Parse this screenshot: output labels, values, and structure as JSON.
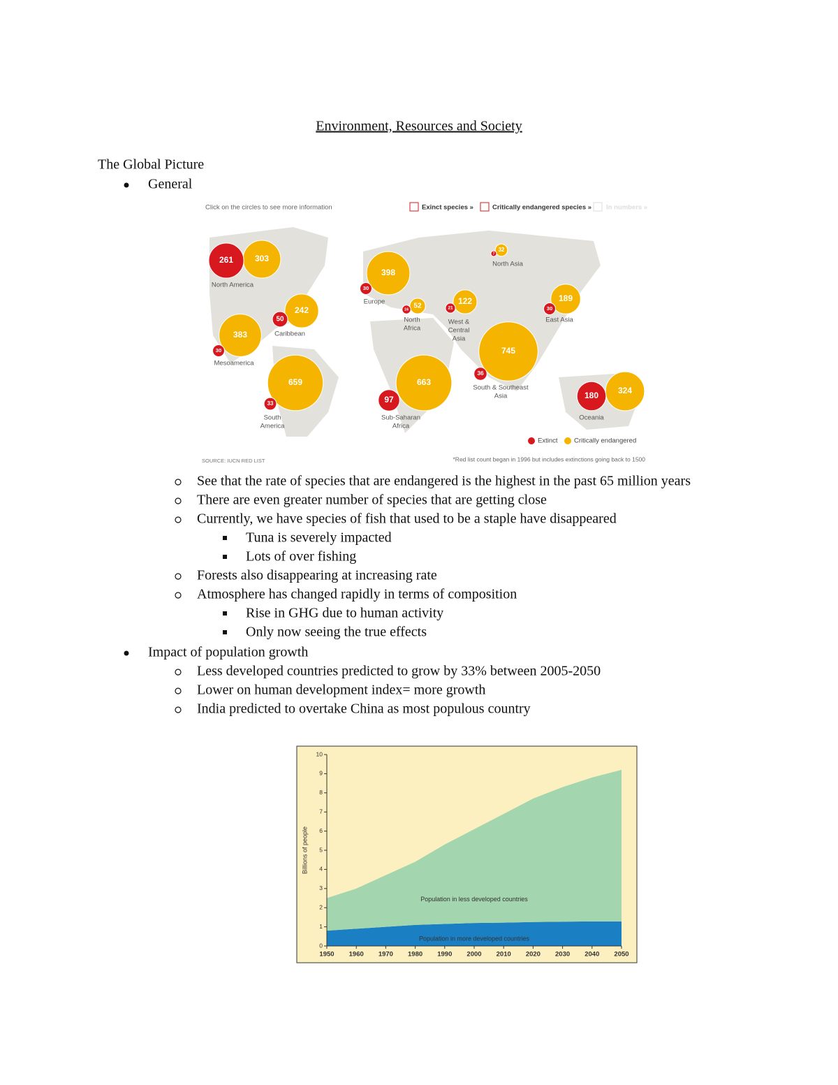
{
  "header": {
    "title": "Environment, Resources and Society"
  },
  "section": {
    "heading": "The Global Picture",
    "bullets": [
      {
        "text": "General",
        "items": [
          {
            "text": "See that the rate of species that are endangered is the highest in the past 65 million years"
          },
          {
            "text": "There are even greater number of species that are getting close"
          },
          {
            "text": "Currently, we have species of fish that used to be a staple have disappeared",
            "items": [
              "Tuna is severely impacted",
              "Lots of over fishing"
            ]
          },
          {
            "text": "Forests also disappearing at increasing rate"
          },
          {
            "text": "Atmosphere has changed rapidly in terms of composition",
            "items": [
              "Rise in GHG due to human activity",
              "Only now seeing the true effects"
            ]
          }
        ]
      },
      {
        "text": "Impact of population growth",
        "items": [
          {
            "text": "Less developed countries predicted to grow by 33% between 2005-2050"
          },
          {
            "text": "Lower on human development index= more growth"
          },
          {
            "text": "India predicted to overtake China as most populous country"
          }
        ]
      }
    ]
  },
  "map": {
    "instruction": "Click on the circles to see more information",
    "toggles": [
      "Exinct species »",
      "Critically endangered species »",
      "In numbers »"
    ],
    "colors": {
      "extinct": "#d7191f",
      "critically_endangered": "#f5b400"
    },
    "regions": [
      {
        "label": [
          "North America"
        ],
        "extinct": 261,
        "critically_endangered": 303
      },
      {
        "label": [
          "Caribbean"
        ],
        "extinct": 50,
        "critically_endangered": 242
      },
      {
        "label": [
          "Mesoamerica"
        ],
        "extinct": 30,
        "critically_endangered": 383
      },
      {
        "label": [
          "South",
          "America"
        ],
        "extinct": 33,
        "critically_endangered": 659
      },
      {
        "label": [
          "Europe"
        ],
        "extinct": 30,
        "critically_endangered": 398
      },
      {
        "label": [
          "North",
          "Africa"
        ],
        "extinct": 16,
        "critically_endangered": 52
      },
      {
        "label": [
          "West &",
          "Central",
          "Asia"
        ],
        "extinct": 21,
        "critically_endangered": 122
      },
      {
        "label": [
          "North Asia"
        ],
        "extinct": 7,
        "critically_endangered": 32
      },
      {
        "label": [
          "East Asia"
        ],
        "extinct": 30,
        "critically_endangered": 189
      },
      {
        "label": [
          "South & Southeast",
          "Asia"
        ],
        "extinct": 36,
        "critically_endangered": 745
      },
      {
        "label": [
          "Sub-Saharan",
          "Africa"
        ],
        "extinct": 97,
        "critically_endangered": 663
      },
      {
        "label": [
          "Oceania"
        ],
        "extinct": 180,
        "critically_endangered": 324
      }
    ],
    "legend": [
      "Extinct",
      "Critically endangered"
    ],
    "source": "SOURCE: IUCN RED LIST",
    "footnote": "*Red list count began in 1996 but includes extinctions going back to 1500"
  },
  "chart_data": {
    "type": "stacked-area",
    "y_label": "Billions of people",
    "x": [
      1950,
      1960,
      1970,
      1980,
      1990,
      2000,
      2010,
      2020,
      2030,
      2040,
      2050
    ],
    "xlim": [
      1950,
      2050
    ],
    "xticks": [
      1950,
      1960,
      1970,
      1980,
      1990,
      2000,
      2010,
      2020,
      2030,
      2040,
      2050
    ],
    "ylim": [
      0,
      10
    ],
    "yticks": [
      0,
      1,
      2,
      3,
      4,
      5,
      6,
      7,
      8,
      9,
      10
    ],
    "background": "#fdf0c0",
    "series": [
      {
        "name": "Population in more developed countries",
        "color": "#1b7fc4",
        "values": [
          0.8,
          0.9,
          1.0,
          1.1,
          1.15,
          1.2,
          1.22,
          1.25,
          1.27,
          1.28,
          1.28
        ]
      },
      {
        "name": "Population in less developed countries",
        "color": "#a3d5ae",
        "values": [
          1.7,
          2.1,
          2.7,
          3.3,
          4.15,
          4.9,
          5.68,
          6.45,
          7.03,
          7.52,
          7.92
        ]
      }
    ]
  }
}
